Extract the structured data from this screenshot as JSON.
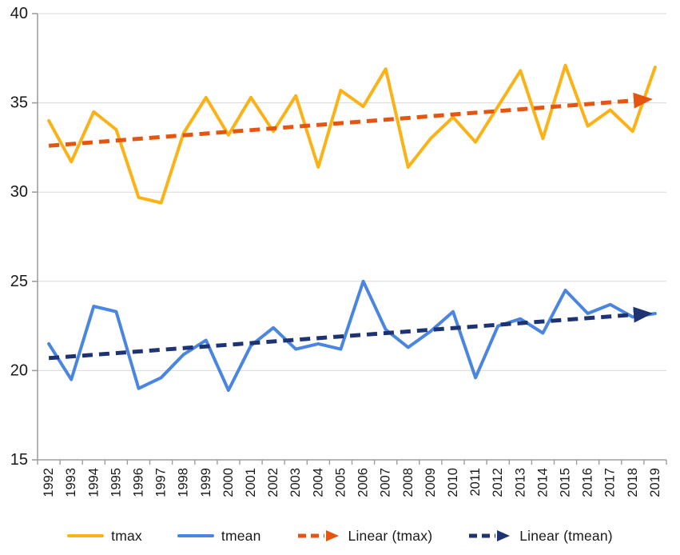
{
  "chart_data": {
    "type": "line",
    "title": "",
    "xlabel": "",
    "ylabel": "",
    "x": [
      "1992",
      "1993",
      "1994",
      "1995",
      "1996",
      "1997",
      "1998",
      "1999",
      "2000",
      "2001",
      "2002",
      "2003",
      "2004",
      "2005",
      "2006",
      "2007",
      "2008",
      "2009",
      "2010",
      "2011",
      "2012",
      "2013",
      "2014",
      "2015",
      "2016",
      "2017",
      "2018",
      "2019"
    ],
    "ylim": [
      15,
      40
    ],
    "yticks": [
      15,
      20,
      25,
      30,
      35,
      40
    ],
    "grid": "horizontal",
    "legend_position": "bottom",
    "series": [
      {
        "name": "tmax",
        "kind": "line",
        "color": "#FBB217",
        "values": [
          34.0,
          31.7,
          34.5,
          33.5,
          29.7,
          29.4,
          33.3,
          35.3,
          33.2,
          35.3,
          33.4,
          35.4,
          31.4,
          35.7,
          34.8,
          36.9,
          31.4,
          33.0,
          34.2,
          32.8,
          34.8,
          36.8,
          33.0,
          37.1,
          33.7,
          34.6,
          33.4,
          37.0
        ]
      },
      {
        "name": "tmean",
        "kind": "line",
        "color": "#4A86E0",
        "values": [
          21.5,
          19.5,
          23.6,
          23.3,
          19.0,
          19.6,
          20.9,
          21.7,
          18.9,
          21.4,
          22.4,
          21.2,
          21.5,
          21.2,
          25.0,
          22.3,
          21.3,
          22.2,
          23.3,
          19.6,
          22.5,
          22.9,
          22.1,
          24.5,
          23.2,
          23.7,
          23.0,
          23.2
        ]
      },
      {
        "name": "Linear (tmax)",
        "kind": "trend",
        "color": "#E65510",
        "start_value": 32.6,
        "end_value": 35.2
      },
      {
        "name": "Linear (tmean)",
        "kind": "trend",
        "color": "#1E3472",
        "start_value": 20.7,
        "end_value": 23.2
      }
    ],
    "axis_color": "#9E9E9E",
    "grid_color": "#D9D9D9",
    "tick_label_color": "#1A1A1A"
  }
}
